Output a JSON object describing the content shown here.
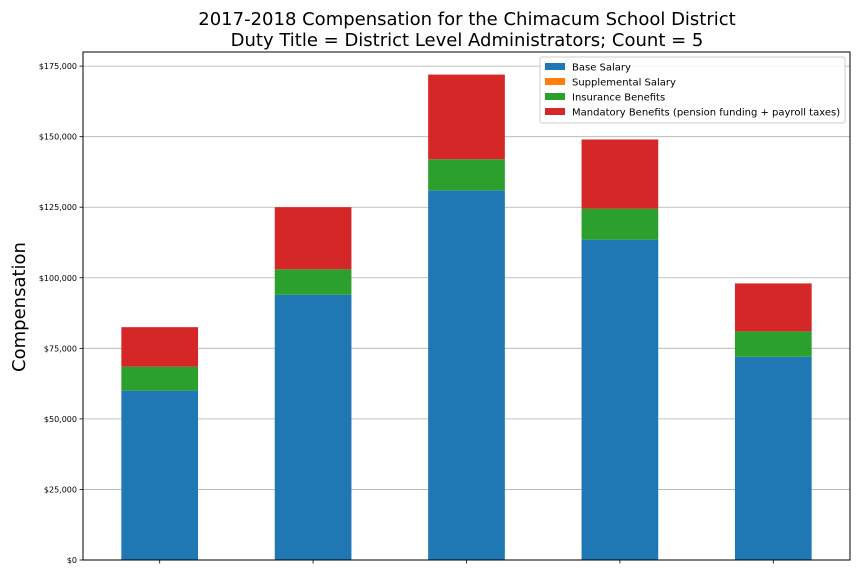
{
  "chart_data": {
    "type": "bar",
    "stacked": true,
    "title": "2017-2018 Compensation for the Chimacum School District",
    "subtitle": "Duty Title = District Level Administrators; Count = 5",
    "xlabel": "",
    "ylabel": "Compensation",
    "ylim": [
      0,
      180000
    ],
    "yticks": [
      0,
      25000,
      50000,
      75000,
      100000,
      125000,
      150000,
      175000
    ],
    "ytick_labels": [
      "$0",
      "$25,000",
      "$50,000",
      "$75,000",
      "$100,000",
      "$125,000",
      "$150,000",
      "$175,000"
    ],
    "grid": "horizontal",
    "legend_position": "top-right",
    "categories": [
      "",
      "",
      "",
      "",
      ""
    ],
    "series": [
      {
        "name": "Base Salary",
        "color": "#1f77b4",
        "values": [
          60000,
          94000,
          131000,
          113500,
          72000
        ]
      },
      {
        "name": "Supplemental Salary",
        "color": "#ff7f0e",
        "values": [
          0,
          0,
          0,
          0,
          0
        ]
      },
      {
        "name": "Insurance Benefits",
        "color": "#2ca02c",
        "values": [
          8500,
          9000,
          11000,
          11000,
          9000
        ]
      },
      {
        "name": "Mandatory Benefits (pension funding + payroll taxes)",
        "color": "#d62728",
        "values": [
          14000,
          22000,
          30000,
          24500,
          17000
        ]
      }
    ]
  }
}
